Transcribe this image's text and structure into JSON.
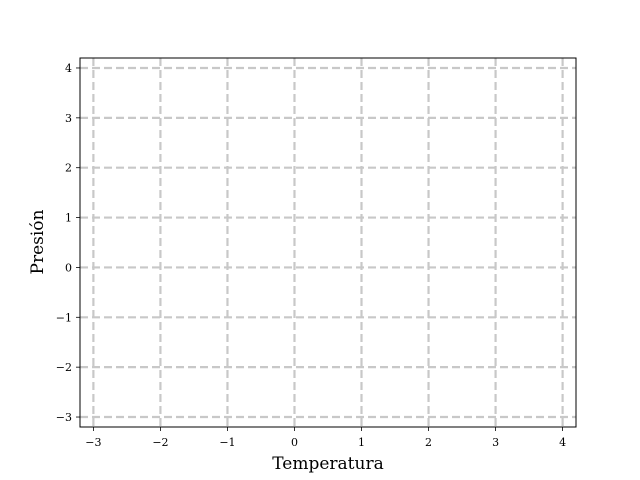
{
  "chart_data": {
    "type": "line",
    "series": [],
    "title": "",
    "xlabel": "Temperatura",
    "ylabel": "Presión",
    "xlim": [
      -3.2,
      4.2
    ],
    "ylim": [
      -3.2,
      4.2
    ],
    "xticks": [
      -3,
      -2,
      -1,
      0,
      1,
      2,
      3,
      4
    ],
    "yticks": [
      -3,
      -2,
      -1,
      0,
      1,
      2,
      3,
      4
    ],
    "xtick_labels": [
      "−3",
      "−2",
      "−1",
      "0",
      "1",
      "2",
      "3",
      "4"
    ],
    "ytick_labels": [
      "−3",
      "−2",
      "−1",
      "0",
      "1",
      "2",
      "3",
      "4"
    ],
    "grid": true,
    "grid_style": "dashed",
    "grid_color": "#c8c8c8"
  }
}
